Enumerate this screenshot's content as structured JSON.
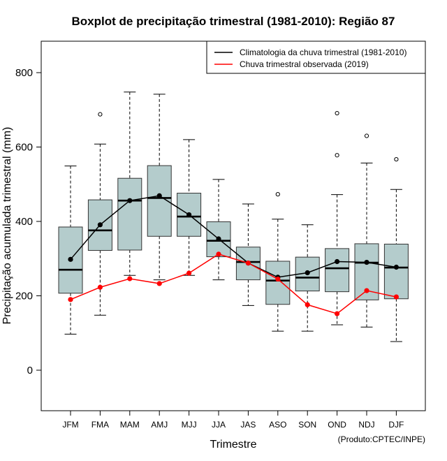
{
  "chart_data": {
    "type": "boxplot",
    "title": "Boxplot de precipitação trimestral (1981-2010): Região 87",
    "xlabel": "Trimestre",
    "ylabel": "Precipitação acumulada trimestral (mm)",
    "ylim": [
      -105,
      885
    ],
    "yticks": [
      "0",
      "200",
      "400",
      "600",
      "800"
    ],
    "ytick_values": [
      0,
      200,
      400,
      600,
      800
    ],
    "categories": [
      "JFM",
      "FMA",
      "MAM",
      "AMJ",
      "MJJ",
      "JJA",
      "JAS",
      "ASO",
      "SON",
      "OND",
      "NDJ",
      "DJF"
    ],
    "boxes": [
      {
        "whisker_low": 97,
        "q1": 207,
        "median": 270,
        "q3": 385,
        "whisker_high": 549,
        "outliers": []
      },
      {
        "whisker_low": 148,
        "q1": 322,
        "median": 376,
        "q3": 458,
        "whisker_high": 608,
        "outliers": [
          688
        ]
      },
      {
        "whisker_low": 255,
        "q1": 323,
        "median": 456,
        "q3": 516,
        "whisker_high": 748,
        "outliers": []
      },
      {
        "whisker_low": 243,
        "q1": 360,
        "median": 463,
        "q3": 550,
        "whisker_high": 742,
        "outliers": []
      },
      {
        "whisker_low": 255,
        "q1": 360,
        "median": 413,
        "q3": 476,
        "whisker_high": 620,
        "outliers": []
      },
      {
        "whisker_low": 243,
        "q1": 305,
        "median": 348,
        "q3": 399,
        "whisker_high": 513,
        "outliers": []
      },
      {
        "whisker_low": 174,
        "q1": 243,
        "median": 291,
        "q3": 331,
        "whisker_high": 447,
        "outliers": []
      },
      {
        "whisker_low": 105,
        "q1": 177,
        "median": 241,
        "q3": 293,
        "whisker_high": 406,
        "outliers": [
          473
        ]
      },
      {
        "whisker_low": 105,
        "q1": 213,
        "median": 249,
        "q3": 304,
        "whisker_high": 391,
        "outliers": []
      },
      {
        "whisker_low": 122,
        "q1": 211,
        "median": 274,
        "q3": 327,
        "whisker_high": 472,
        "outliers": [
          578,
          691
        ]
      },
      {
        "whisker_low": 116,
        "q1": 189,
        "median": 289,
        "q3": 340,
        "whisker_high": 557,
        "outliers": [
          630
        ]
      },
      {
        "whisker_low": 77,
        "q1": 192,
        "median": 276,
        "q3": 339,
        "whisker_high": 486,
        "outliers": [
          567
        ]
      }
    ],
    "series": [
      {
        "name": "Climatologia da chuva trimestral (1981-2010)",
        "color": "#000000",
        "values": [
          298,
          391,
          456,
          469,
          418,
          353,
          288,
          250,
          262,
          292,
          290,
          277
        ]
      },
      {
        "name": "Chuva trimestral observada (2019)",
        "color": "#ff0000",
        "values": [
          190,
          223,
          246,
          233,
          261,
          312,
          288,
          245,
          176,
          152,
          214,
          197
        ]
      }
    ],
    "box_fill": "#b4cccc",
    "legend_position": "top-right",
    "grid": false
  },
  "credit": "(Produto:CPTEC/INPE)"
}
